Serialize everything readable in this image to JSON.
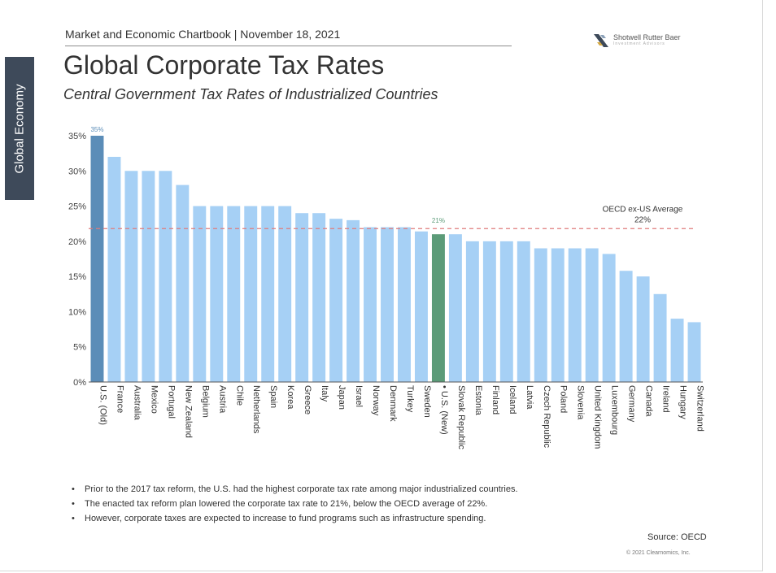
{
  "sidebar": {
    "label": "Global Economy"
  },
  "header": {
    "chartbook": "Market and Economic Chartbook | November 18, 2021",
    "logo": "Shotwell Rutter Baer",
    "logo_tagline": "Investment Advisors"
  },
  "colors": {
    "default_bar": "#a6d0f5",
    "old_us_bar": "#5b8db8",
    "new_us_bar": "#5b9b78",
    "avg_line": "#e07b7b"
  },
  "chart_data": {
    "type": "bar",
    "title": "Global Corporate Tax Rates",
    "subtitle": "Central Government Tax Rates of Industrialized Countries",
    "categories": [
      "U.S. (Old)",
      "France",
      "Australia",
      "Mexico",
      "Portugal",
      "New Zealand",
      "Belgium",
      "Austria",
      "Chile",
      "Netherlands",
      "Spain",
      "Korea",
      "Greece",
      "Italy",
      "Japan",
      "Israel",
      "Norway",
      "Denmark",
      "Turkey",
      "Sweden",
      "• U.S. (New)",
      "Slovak Republic",
      "Estonia",
      "Finland",
      "Iceland",
      "Latvia",
      "Czech Republic",
      "Poland",
      "Slovenia",
      "United Kingdom",
      "Luxembourg",
      "Germany",
      "Canada",
      "Ireland",
      "Hungary",
      "Switzerland"
    ],
    "values": [
      35,
      32,
      30,
      30,
      30,
      28,
      25,
      25,
      25,
      25,
      25,
      25,
      24,
      24,
      23.2,
      23,
      22,
      22,
      22,
      21.4,
      21,
      21,
      20,
      20,
      20,
      20,
      19,
      19,
      19,
      19,
      18.2,
      15.8,
      15,
      12.5,
      9,
      8.5
    ],
    "highlight": {
      "old_us_index": 0,
      "new_us_index": 20
    },
    "data_labels": {
      "old_us": "35%",
      "new_us": "21%"
    },
    "ylim": [
      0,
      35
    ],
    "yticks": [
      "0%",
      "5%",
      "10%",
      "15%",
      "20%",
      "25%",
      "30%",
      "35%"
    ],
    "average_line": {
      "value": 21.8,
      "label": "OECD ex-US Average",
      "value_label": "22%"
    },
    "xlabel": "",
    "ylabel": ""
  },
  "notes": [
    "Prior to the 2017 tax reform, the U.S. had the highest corporate tax rate among major industrialized countries.",
    "The enacted tax reform plan lowered the corporate tax rate to 21%, below the OECD average of 22%.",
    "However, corporate taxes are expected to increase to fund programs such as infrastructure spending."
  ],
  "footer": {
    "source": "Source: OECD",
    "copyright": "© 2021 Clearnomics, Inc."
  }
}
